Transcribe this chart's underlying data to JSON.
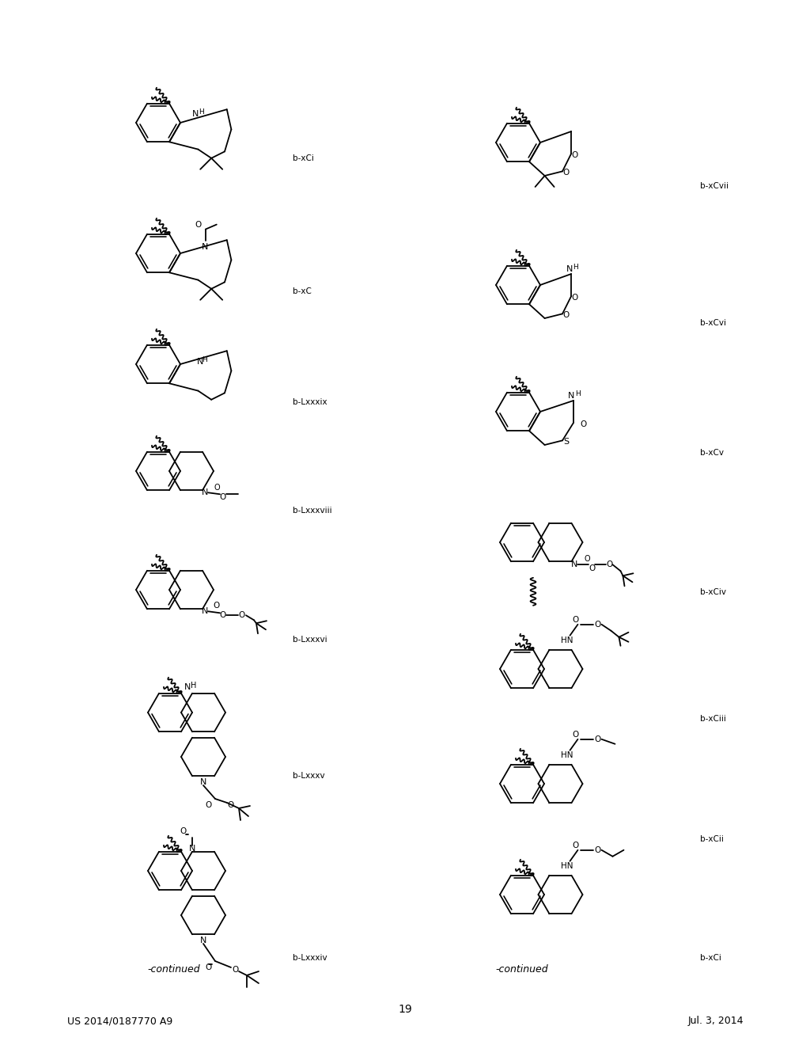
{
  "page_header_left": "US 2014/0187770 A9",
  "page_header_right": "Jul. 3, 2014",
  "page_number": "19",
  "bg": "#ffffff",
  "lw": 1.3,
  "figsize": [
    10.24,
    13.2
  ],
  "dpi": 100
}
